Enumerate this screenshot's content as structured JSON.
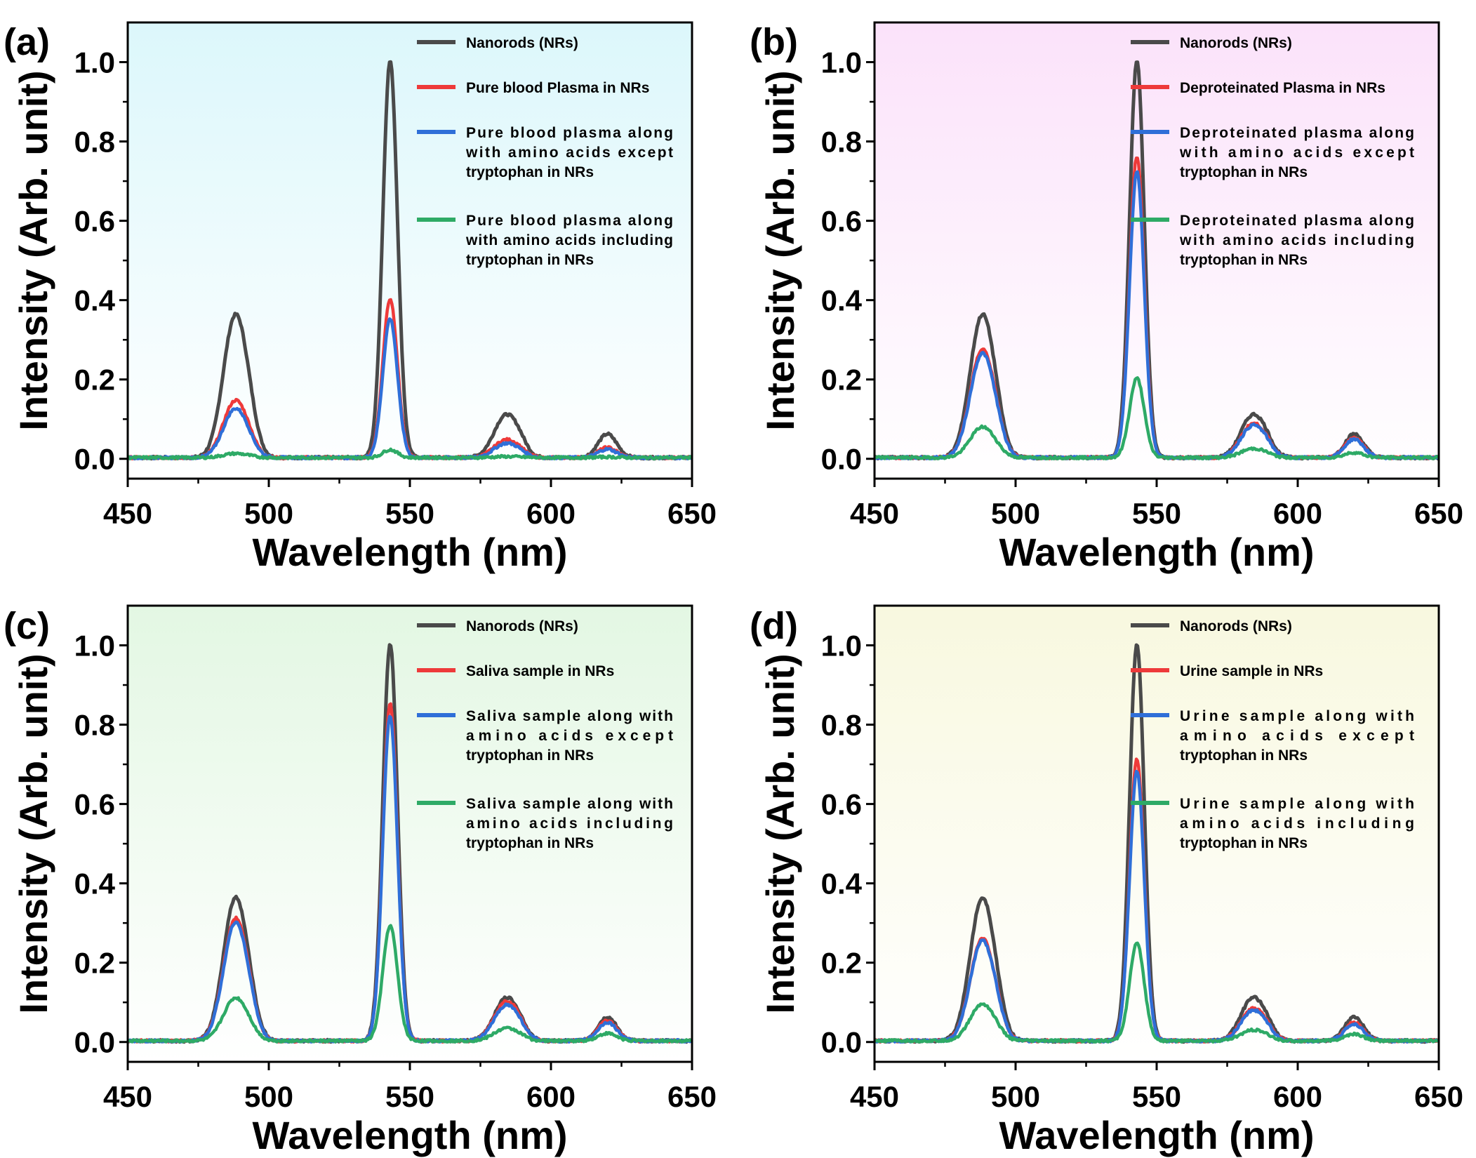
{
  "figure": {
    "colors": {
      "nanorods": "#4a4a4a",
      "sample": "#ee3a3a",
      "except_trp": "#2f6fd8",
      "including_trp": "#2eaa66",
      "bg_a": "#dcf7fb",
      "bg_b": "#fbe2fa",
      "bg_c": "#e3f7e3",
      "bg_d": "#f8f8df"
    }
  },
  "chart_data": [
    {
      "panel": "(a)",
      "type": "line",
      "xlabel": "Wavelength (nm)",
      "ylabel": "Intensity (Arb. unit)",
      "xlim": [
        450,
        650
      ],
      "ylim": [
        -0.05,
        1.1
      ],
      "xticks": [
        "450",
        "500",
        "550",
        "600",
        "650"
      ],
      "yticks": [
        "0.0",
        "0.2",
        "0.4",
        "0.6",
        "0.8",
        "1.0"
      ],
      "legend_position": "top-right",
      "peak_wavelengths": [
        488,
        543,
        584,
        620
      ],
      "series": [
        {
          "name": "Nanorods (NRs)",
          "peaks": [
            0.35,
            1.0,
            0.12,
            0.07
          ],
          "legend_lines": [
            "Nanorods (NRs)"
          ]
        },
        {
          "name": "Pure blood Plasma in NRs",
          "peaks": [
            0.14,
            0.4,
            0.05,
            0.03
          ],
          "legend_lines": [
            "Pure blood Plasma in NRs"
          ]
        },
        {
          "name": "Pure blood plasma along with amino acids except tryptophan in NRs",
          "peaks": [
            0.12,
            0.35,
            0.04,
            0.025
          ],
          "legend_lines": [
            "Pure blood plasma along",
            "with amino acids except",
            "tryptophan in NRs"
          ]
        },
        {
          "name": "Pure blood plasma along with amino acids including tryptophan in NRs",
          "peaks": [
            0.01,
            0.02,
            0.003,
            0.002
          ],
          "legend_lines": [
            "Pure blood plasma along",
            "with amino acids including",
            "tryptophan in NRs"
          ]
        }
      ]
    },
    {
      "panel": "(b)",
      "type": "line",
      "xlabel": "Wavelength (nm)",
      "ylabel": "Intensity (Arb. unit)",
      "xlim": [
        450,
        650
      ],
      "ylim": [
        -0.05,
        1.1
      ],
      "xticks": [
        "450",
        "500",
        "550",
        "600",
        "650"
      ],
      "yticks": [
        "0.0",
        "0.2",
        "0.4",
        "0.6",
        "0.8",
        "1.0"
      ],
      "legend_position": "top-right",
      "peak_wavelengths": [
        488,
        543,
        584,
        620
      ],
      "series": [
        {
          "name": "Nanorods (NRs)",
          "peaks": [
            0.35,
            1.0,
            0.12,
            0.07
          ],
          "legend_lines": [
            "Nanorods (NRs)"
          ]
        },
        {
          "name": "Deproteinated Plasma in NRs",
          "peaks": [
            0.265,
            0.76,
            0.095,
            0.06
          ],
          "legend_lines": [
            "Deproteinated Plasma in NRs"
          ]
        },
        {
          "name": "Deproteinated plasma along with amino acids except tryptophan in NRs",
          "peaks": [
            0.255,
            0.72,
            0.09,
            0.055
          ],
          "legend_lines": [
            "Deproteinated plasma along",
            "with amino acids except",
            "tryptophan in NRs"
          ]
        },
        {
          "name": "Deproteinated plasma along with amino acids including tryptophan in NRs",
          "peaks": [
            0.075,
            0.2,
            0.025,
            0.015
          ],
          "legend_lines": [
            "Deproteinated plasma along",
            "with amino acids including",
            "tryptophan in NRs"
          ]
        }
      ]
    },
    {
      "panel": "(c)",
      "type": "line",
      "xlabel": "Wavelength (nm)",
      "ylabel": "Intensity (Arb. unit)",
      "xlim": [
        450,
        650
      ],
      "ylim": [
        -0.05,
        1.1
      ],
      "xticks": [
        "450",
        "500",
        "550",
        "600",
        "650"
      ],
      "yticks": [
        "0.0",
        "0.2",
        "0.4",
        "0.6",
        "0.8",
        "1.0"
      ],
      "legend_position": "top-right",
      "peak_wavelengths": [
        488,
        543,
        584,
        620
      ],
      "series": [
        {
          "name": "Nanorods (NRs)",
          "peaks": [
            0.35,
            1.0,
            0.12,
            0.07
          ],
          "legend_lines": [
            "Nanorods (NRs)"
          ]
        },
        {
          "name": "Saliva sample in NRs",
          "peaks": [
            0.3,
            0.85,
            0.11,
            0.06
          ],
          "legend_lines": [
            "Saliva sample in NRs"
          ]
        },
        {
          "name": "Saliva sample along with amino acids except tryptophan in NRs",
          "peaks": [
            0.29,
            0.82,
            0.1,
            0.055
          ],
          "legend_lines": [
            "Saliva sample along with",
            "amino acids except",
            "tryptophan in NRs"
          ]
        },
        {
          "name": "Saliva sample along with amino acids including tryptophan in NRs",
          "peaks": [
            0.105,
            0.29,
            0.035,
            0.022
          ],
          "legend_lines": [
            "Saliva sample along with",
            "amino acids including",
            "tryptophan in NRs"
          ]
        }
      ]
    },
    {
      "panel": "(d)",
      "type": "line",
      "xlabel": "Wavelength (nm)",
      "ylabel": "Intensity (Arb. unit)",
      "xlim": [
        450,
        650
      ],
      "ylim": [
        -0.05,
        1.1
      ],
      "xticks": [
        "450",
        "500",
        "550",
        "600",
        "650"
      ],
      "yticks": [
        "0.0",
        "0.2",
        "0.4",
        "0.6",
        "0.8",
        "1.0"
      ],
      "legend_position": "top-right",
      "peak_wavelengths": [
        488,
        543,
        584,
        620
      ],
      "series": [
        {
          "name": "Nanorods (NRs)",
          "peaks": [
            0.35,
            1.0,
            0.12,
            0.07
          ],
          "legend_lines": [
            "Nanorods (NRs)"
          ]
        },
        {
          "name": "Urine sample in NRs",
          "peaks": [
            0.25,
            0.71,
            0.09,
            0.055
          ],
          "legend_lines": [
            "Urine sample in NRs"
          ]
        },
        {
          "name": "Urine sample along with amino acids except tryptophan in NRs",
          "peaks": [
            0.245,
            0.68,
            0.085,
            0.05
          ],
          "legend_lines": [
            "Urine sample along with",
            "amino acids except",
            "tryptophan in NRs"
          ]
        },
        {
          "name": "Urine sample along with amino acids including tryptophan in NRs",
          "peaks": [
            0.09,
            0.245,
            0.03,
            0.02
          ],
          "legend_lines": [
            "Urine sample along with",
            "amino acids including",
            "tryptophan in NRs"
          ]
        }
      ]
    }
  ]
}
